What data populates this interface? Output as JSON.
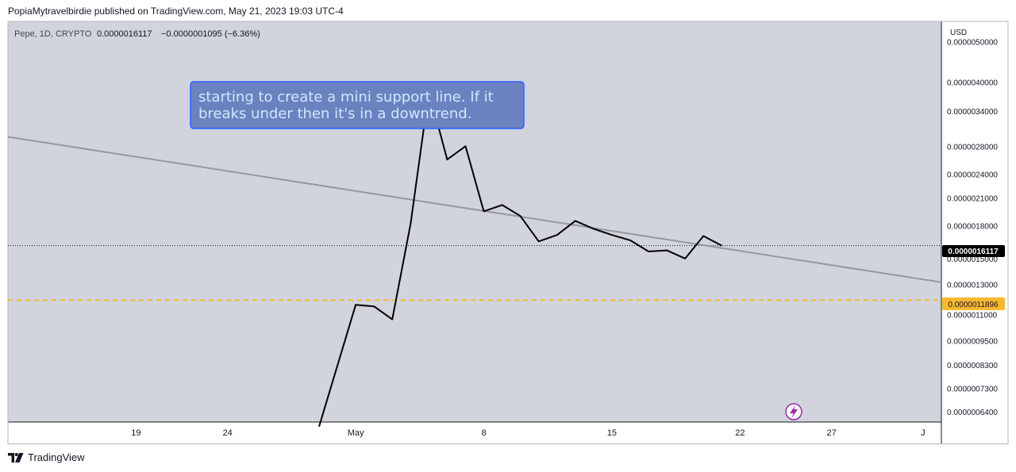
{
  "header": {
    "published_text": "PopiaMytravelbirdie published on TradingView.com, May 21, 2023 19:03 UTC-4"
  },
  "symbol": {
    "name": "Pepe, 1D, CRYPTO",
    "last": "0.0000016117",
    "change": "−0.0000001095 (−6.36%)"
  },
  "annotation": {
    "text_line1": "starting to create a mini support line. If it",
    "text_line2": "breaks under then it's in a downtrend."
  },
  "price_axis": {
    "currency": "USD",
    "labels": [
      "0.0000050000",
      "0.0000040000",
      "0.0000034000",
      "0.0000028000",
      "0.0000024000",
      "0.0000021000",
      "0.0000018000",
      "0.0000015000",
      "0.0000013000",
      "0.0000011000",
      "0.0000009500",
      "0.0000008300",
      "0.0000007300",
      "0.0000006400"
    ],
    "last_price_badge": "0.0000016117",
    "support_badge": "0.0000011896"
  },
  "time_axis": {
    "labels": [
      "19",
      "24",
      "May",
      "8",
      "15",
      "22",
      "27",
      "J"
    ]
  },
  "footer": {
    "brand": "TradingView"
  },
  "colors": {
    "pane_bg": "#d1d4dc",
    "line": "#000000",
    "trendline": "#9598a1",
    "support": "#f7b931",
    "annotation_bg": "#6b82c0",
    "annotation_border": "#2962ff",
    "annotation_text": "#cbeafd",
    "badge_dark": "#000000"
  },
  "chart_data": {
    "type": "line",
    "scale": "log",
    "series": [
      {
        "x": [
          "2023-04-29",
          "2023-05-01",
          "2023-05-02",
          "2023-05-03",
          "2023-05-04",
          "2023-05-05",
          "2023-05-06",
          "2023-05-07",
          "2023-05-08",
          "2023-05-09",
          "2023-05-10",
          "2023-05-11",
          "2023-05-12",
          "2023-05-13",
          "2023-05-14",
          "2023-05-15",
          "2023-05-16",
          "2023-05-17",
          "2023-05-18",
          "2023-05-19",
          "2023-05-20",
          "2023-05-21"
        ],
        "y": [
          5.9e-07,
          1.16e-06,
          1.15e-06,
          1.07e-06,
          1.82e-06,
          3.8e-06,
          2.6e-06,
          2.8e-06,
          1.95e-06,
          2.02e-06,
          1.9e-06,
          1.65e-06,
          1.71e-06,
          1.85e-06,
          1.77e-06,
          1.71e-06,
          1.66e-06,
          1.56e-06,
          1.57e-06,
          1.5e-06,
          1.7e-06,
          1.6117e-06
        ]
      }
    ],
    "trendline": {
      "x": [
        "2023-04-12",
        "2023-06-02"
      ],
      "y": [
        2.95e-06,
        1.315e-06
      ]
    },
    "horizontal_levels": [
      1.6117e-06,
      1.1896e-06
    ],
    "ylim": [
      6.05e-07,
      5.6e-06
    ],
    "xlim": [
      "2023-04-12",
      "2023-06-02"
    ]
  }
}
